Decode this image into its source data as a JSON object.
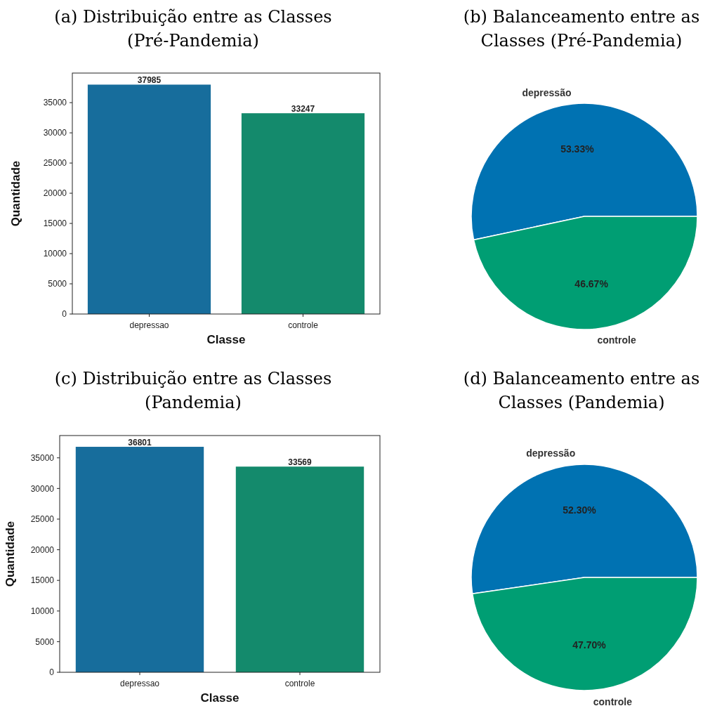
{
  "chart_data": [
    {
      "type": "bar",
      "title": "(a) Distribuição entre as Classes\n(Pré-Pandemia)",
      "xlabel": "Classe",
      "ylabel": "Quantidade",
      "categories": [
        "depressao",
        "controle"
      ],
      "values": [
        37985,
        33247
      ],
      "colors": [
        "#176d9c",
        "#148a6c"
      ],
      "ylim": [
        0,
        39900
      ],
      "yticks": [
        0,
        5000,
        10000,
        15000,
        20000,
        25000,
        30000,
        35000
      ],
      "data_labels": true
    },
    {
      "type": "pie",
      "title": "(b) Balanceamento entre as\nClasses (Pré-Pandemia)",
      "categories": [
        "depressão",
        "controle"
      ],
      "values": [
        53.33,
        46.67
      ],
      "value_labels": [
        "53.33%",
        "46.67%"
      ],
      "colors": [
        "#0072b2",
        "#009e73"
      ]
    },
    {
      "type": "bar",
      "title": "(c) Distribuição entre as Classes\n(Pandemia)",
      "xlabel": "Classe",
      "ylabel": "Quantidade",
      "categories": [
        "depressao",
        "controle"
      ],
      "values": [
        36801,
        33569
      ],
      "colors": [
        "#176d9c",
        "#148a6c"
      ],
      "ylim": [
        0,
        38640
      ],
      "yticks": [
        0,
        5000,
        10000,
        15000,
        20000,
        25000,
        30000,
        35000
      ],
      "data_labels": true
    },
    {
      "type": "pie",
      "title": "(d) Balanceamento entre as\nClasses (Pandemia)",
      "categories": [
        "depressão",
        "controle"
      ],
      "values": [
        52.3,
        47.7
      ],
      "value_labels": [
        "52.30%",
        "47.70%"
      ],
      "colors": [
        "#0072b2",
        "#009e73"
      ]
    }
  ]
}
